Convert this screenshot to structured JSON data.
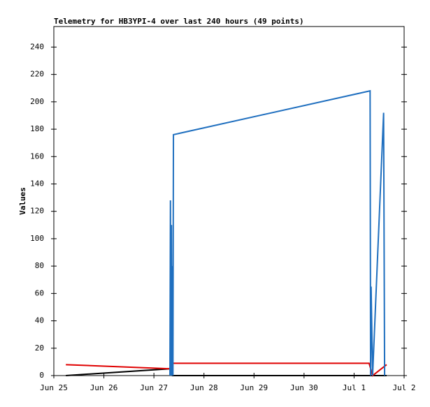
{
  "chart_data": {
    "type": "line",
    "title": "Telemetry for HB3YPI-4 over last 240 hours (49 points)",
    "y_label": "Values",
    "xlim": [
      0,
      7
    ],
    "xticks": [
      {
        "value": 0,
        "label": "Jun 25"
      },
      {
        "value": 1,
        "label": "Jun 26"
      },
      {
        "value": 2,
        "label": "Jun 27"
      },
      {
        "value": 3,
        "label": "Jun 28"
      },
      {
        "value": 4,
        "label": "Jun 29"
      },
      {
        "value": 5,
        "label": "Jun 30"
      },
      {
        "value": 6,
        "label": "Jul 1"
      },
      {
        "value": 7,
        "label": "Jul 2"
      }
    ],
    "ylim": [
      0,
      255
    ],
    "yticks": [
      0,
      20,
      40,
      60,
      80,
      100,
      120,
      140,
      160,
      180,
      200,
      220,
      240
    ],
    "grid": false,
    "series": [
      {
        "color": "#000000",
        "x": [
          0.24,
          2.32,
          2.37,
          6.65
        ],
        "values": [
          0,
          5,
          0,
          0
        ]
      },
      {
        "color": "#e00000",
        "x": [
          0.24,
          2.32,
          2.37,
          6.3,
          6.37,
          6.65
        ],
        "values": [
          8,
          5,
          9,
          9,
          0,
          8
        ]
      },
      {
        "color": "#1f6fbf",
        "x": [
          2.32,
          2.33,
          2.34,
          2.35,
          2.36,
          2.37,
          2.38,
          2.39,
          6.32,
          6.33,
          6.34,
          6.37,
          6.59,
          6.61
        ],
        "values": [
          0,
          128,
          0,
          110,
          0,
          80,
          0,
          176,
          208,
          0,
          65,
          0,
          192,
          0
        ]
      }
    ]
  }
}
